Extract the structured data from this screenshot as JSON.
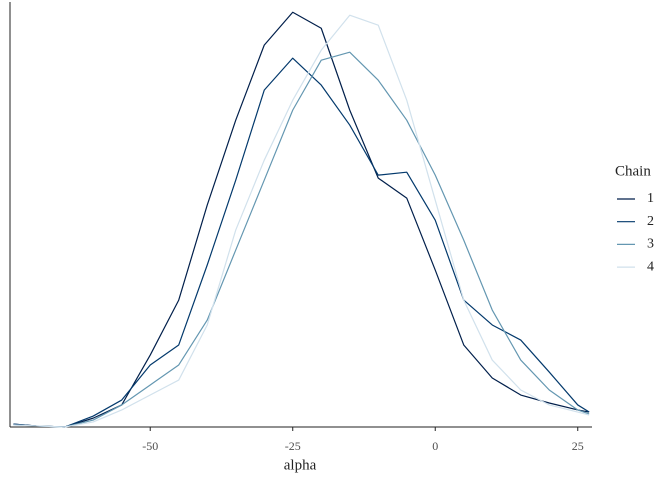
{
  "chart_data": {
    "type": "line",
    "x_label": "alpha",
    "legend_title": "Chain",
    "legend_position": "right",
    "grid": false,
    "x": [
      -74,
      -70,
      -65,
      -60,
      -55,
      -50,
      -45,
      -40,
      -35,
      -30,
      -25,
      -20,
      -15,
      -10,
      -5,
      0,
      5,
      10,
      15,
      20,
      25,
      27
    ],
    "series": [
      {
        "name": "1",
        "color": "#011f4b",
        "values": [
          0.0002,
          7e-05,
          0,
          0.0006,
          0.00149,
          0.00486,
          0.00857,
          0.01499,
          0.02072,
          0.02579,
          0.02801,
          0.02693,
          0.0214,
          0.01681,
          0.01546,
          0.0106,
          0.00554,
          0.00331,
          0.00216,
          0.00162,
          0.00115,
          0.00101
        ]
      },
      {
        "name": "2",
        "color": "#03396c",
        "values": [
          0.0002,
          7e-05,
          0,
          0.00074,
          0.00182,
          0.00419,
          0.00554,
          0.01094,
          0.01667,
          0.02275,
          0.02491,
          0.02309,
          0.02039,
          0.01701,
          0.01721,
          0.01397,
          0.00857,
          0.00689,
          0.00587,
          0.00371,
          0.00149,
          0.00101
        ]
      },
      {
        "name": "3",
        "color": "#6497b1",
        "values": [
          0.00014,
          7e-05,
          0,
          0.00047,
          0.00149,
          0.00284,
          0.00419,
          0.00722,
          0.01195,
          0.01667,
          0.0214,
          0.02477,
          0.02531,
          0.02342,
          0.02072,
          0.01701,
          0.01262,
          0.0079,
          0.00452,
          0.0025,
          0.00115,
          0.00088
        ]
      },
      {
        "name": "4",
        "color": "#d1e1ec",
        "values": [
          0.00014,
          7e-05,
          0,
          0.00034,
          0.00115,
          0.00216,
          0.00317,
          0.00689,
          0.0133,
          0.01802,
          0.02207,
          0.02545,
          0.02781,
          0.02714,
          0.02207,
          0.01532,
          0.00857,
          0.00452,
          0.0025,
          0.00149,
          0.00101,
          0.00081
        ]
      }
    ],
    "xlim": [
      -74.6,
      27.5
    ],
    "xticks": [
      -50,
      -25,
      0,
      25
    ],
    "ylim": [
      0,
      0.0285
    ]
  }
}
